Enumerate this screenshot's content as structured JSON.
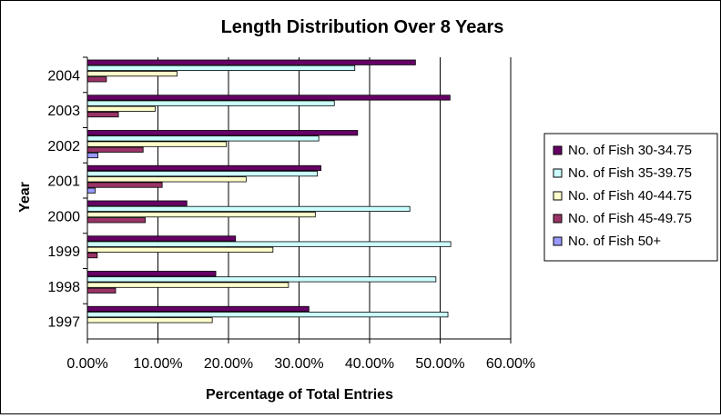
{
  "chart_data": {
    "type": "bar",
    "orientation": "horizontal",
    "title": "Length Distribution Over 8 Years",
    "xlabel": "Percentage of Total Entries",
    "ylabel": "Year",
    "xlim": [
      0,
      0.6
    ],
    "x_ticks": [
      "0.00%",
      "10.00%",
      "20.00%",
      "30.00%",
      "40.00%",
      "50.00%",
      "60.00%"
    ],
    "grid": "vertical",
    "legend_position": "right",
    "categories": [
      "1997",
      "1998",
      "1999",
      "2000",
      "2001",
      "2002",
      "2003",
      "2004"
    ],
    "series": [
      {
        "name": "No. of Fish 30-34.75",
        "color": "#660066",
        "values": [
          0.314,
          0.182,
          0.21,
          0.141,
          0.331,
          0.383,
          0.514,
          0.465
        ]
      },
      {
        "name": "No. of Fish 35-39.75",
        "color": "#CCFFFF",
        "values": [
          0.511,
          0.494,
          0.515,
          0.457,
          0.326,
          0.328,
          0.35,
          0.379
        ]
      },
      {
        "name": "No. of Fish 40-44.75",
        "color": "#FFFFCC",
        "values": [
          0.177,
          0.285,
          0.263,
          0.323,
          0.225,
          0.197,
          0.096,
          0.127
        ]
      },
      {
        "name": "No. of Fish 45-49.75",
        "color": "#993366",
        "values": [
          0,
          0.04,
          0.014,
          0.082,
          0.106,
          0.079,
          0.044,
          0.027
        ]
      },
      {
        "name": "No. of Fish 50+",
        "color": "#9999FF",
        "values": [
          0,
          0,
          0,
          0,
          0.011,
          0.015,
          0,
          0
        ]
      }
    ]
  }
}
